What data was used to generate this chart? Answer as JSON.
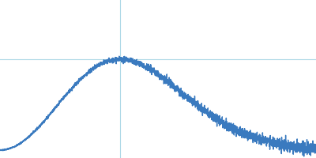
{
  "line_color": "#3a7abf",
  "background_color": "#ffffff",
  "crosshair_color": "#add8e6",
  "crosshair_linewidth": 0.8,
  "line_width": 1.0,
  "figsize": [
    4.0,
    2.0
  ],
  "dpi": 100,
  "noise_seed": 7
}
